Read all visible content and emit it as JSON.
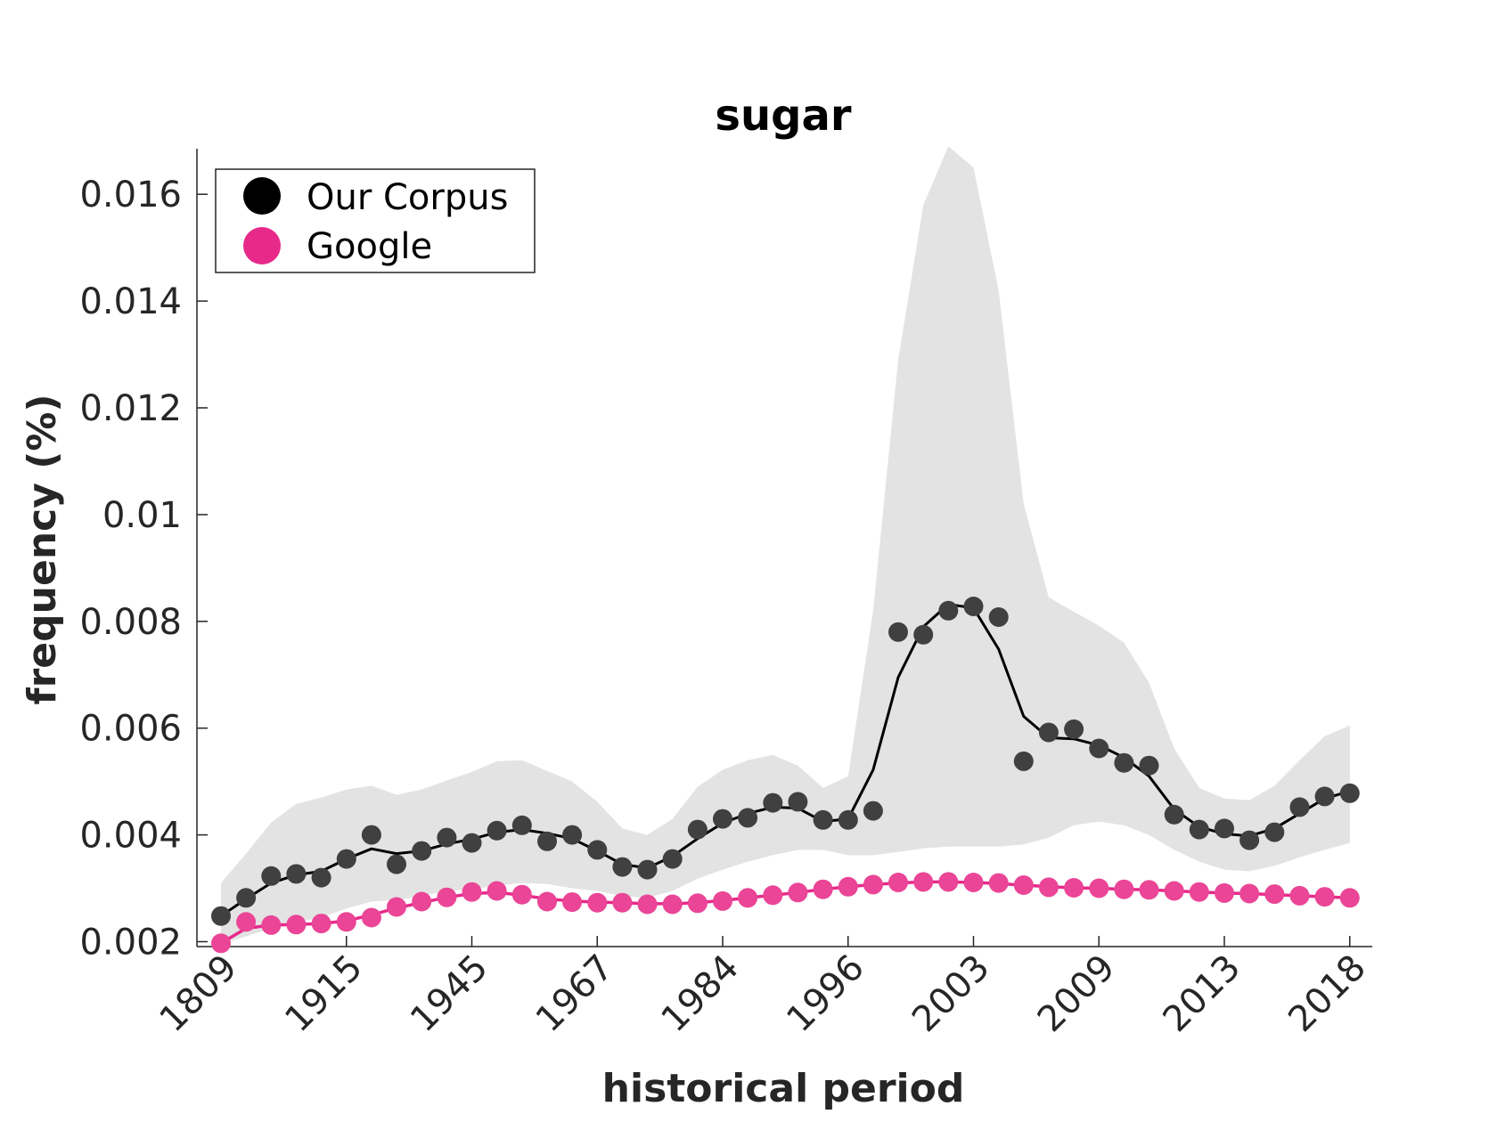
{
  "chart_data": {
    "type": "line",
    "title": "sugar",
    "xlabel": "historical period",
    "ylabel": "frequency (%)",
    "ylim": [
      0.00195,
      0.0169
    ],
    "yticks": [
      0.002,
      0.004,
      0.006,
      0.008,
      0.01,
      0.012,
      0.014,
      0.016
    ],
    "ytick_labels": [
      "0.002",
      "0.004",
      "0.006",
      "0.008",
      "0.01",
      "0.012",
      "0.014",
      "0.016"
    ],
    "xtick_labels": [
      "1809",
      "1915",
      "1945",
      "1967",
      "1984",
      "1996",
      "2003",
      "2009",
      "2013",
      "2018"
    ],
    "xtick_positions": [
      0,
      5,
      10,
      15,
      20,
      25,
      30,
      35,
      40,
      45
    ],
    "x": [
      0,
      1,
      2,
      3,
      4,
      5,
      6,
      7,
      8,
      9,
      10,
      11,
      12,
      13,
      14,
      15,
      16,
      17,
      18,
      19,
      20,
      21,
      22,
      23,
      24,
      25,
      26,
      27,
      28,
      29,
      30,
      31,
      32,
      33,
      34,
      35,
      36,
      37,
      38,
      39,
      40,
      41,
      42,
      43,
      44,
      45
    ],
    "grid": false,
    "legend_position": "top-left",
    "series": [
      {
        "name": "Our Corpus",
        "color": "#000000",
        "marker_color": "#404040",
        "points": [
          0.00248,
          0.00282,
          0.00323,
          0.00327,
          0.0032,
          0.00355,
          0.004,
          0.00345,
          0.0037,
          0.00395,
          0.00385,
          0.00408,
          0.00418,
          0.00388,
          0.004,
          0.00372,
          0.0034,
          0.00335,
          0.00355,
          0.0041,
          0.0043,
          0.00432,
          0.0046,
          0.00462,
          0.00428,
          0.00428,
          0.00445,
          0.0078,
          0.00775,
          0.0082,
          0.00828,
          0.00808,
          0.00538,
          0.00592,
          0.00598,
          0.00562,
          0.00535,
          0.0053,
          0.00438,
          0.0041,
          0.00412,
          0.0039,
          0.00405,
          0.00452,
          0.00472,
          0.00478
        ],
        "smooth": [
          0.00248,
          0.0028,
          0.0031,
          0.00325,
          0.00332,
          0.00355,
          0.00374,
          0.00365,
          0.0037,
          0.00383,
          0.00392,
          0.00405,
          0.0041,
          0.00403,
          0.00393,
          0.0037,
          0.00345,
          0.00338,
          0.0036,
          0.00393,
          0.00422,
          0.0044,
          0.00452,
          0.0045,
          0.00425,
          0.0043,
          0.00522,
          0.00695,
          0.0079,
          0.00832,
          0.00825,
          0.00748,
          0.00622,
          0.00582,
          0.0058,
          0.00568,
          0.00545,
          0.0051,
          0.00448,
          0.00415,
          0.00402,
          0.00398,
          0.00412,
          0.0044,
          0.00468,
          0.00482
        ],
        "band_upper": [
          0.0031,
          0.00365,
          0.00423,
          0.00458,
          0.0047,
          0.00485,
          0.00492,
          0.00475,
          0.00485,
          0.00502,
          0.00518,
          0.00538,
          0.0054,
          0.0052,
          0.005,
          0.00462,
          0.00412,
          0.004,
          0.0043,
          0.0049,
          0.00522,
          0.0054,
          0.0055,
          0.0053,
          0.00488,
          0.0051,
          0.0082,
          0.0129,
          0.0158,
          0.0169,
          0.0165,
          0.0142,
          0.0102,
          0.00845,
          0.00818,
          0.00792,
          0.0076,
          0.00685,
          0.00562,
          0.00488,
          0.00468,
          0.00465,
          0.00492,
          0.0054,
          0.00585,
          0.00605
        ],
        "band_lower": [
          0.00195,
          0.0021,
          0.00225,
          0.00237,
          0.00245,
          0.00262,
          0.00275,
          0.00278,
          0.00285,
          0.00295,
          0.00298,
          0.00305,
          0.0031,
          0.00308,
          0.003,
          0.00295,
          0.00285,
          0.00282,
          0.00295,
          0.00318,
          0.00335,
          0.0035,
          0.00362,
          0.00372,
          0.00372,
          0.00362,
          0.00362,
          0.00368,
          0.00375,
          0.00378,
          0.00378,
          0.00378,
          0.00382,
          0.00395,
          0.00418,
          0.00425,
          0.00418,
          0.004,
          0.00372,
          0.0035,
          0.00335,
          0.00332,
          0.00342,
          0.00358,
          0.00372,
          0.00385
        ]
      },
      {
        "name": "Google",
        "color": "#e7298a",
        "marker_color": "#ea4596",
        "points": [
          0.00197,
          0.00237,
          0.00231,
          0.00232,
          0.00234,
          0.00237,
          0.00245,
          0.00265,
          0.00275,
          0.00283,
          0.00293,
          0.00295,
          0.00288,
          0.00275,
          0.00274,
          0.00273,
          0.00273,
          0.0027,
          0.0027,
          0.00272,
          0.00276,
          0.00282,
          0.00287,
          0.00292,
          0.00298,
          0.00303,
          0.00307,
          0.00311,
          0.00312,
          0.00312,
          0.00311,
          0.0031,
          0.00306,
          0.00302,
          0.00301,
          0.003,
          0.00298,
          0.00297,
          0.00295,
          0.00293,
          0.00291,
          0.0029,
          0.00289,
          0.00286,
          0.00284,
          0.00282
        ],
        "smooth": [
          0.00197,
          0.00225,
          0.00231,
          0.00232,
          0.00234,
          0.00239,
          0.0025,
          0.00263,
          0.00273,
          0.00283,
          0.0029,
          0.00292,
          0.00287,
          0.0028,
          0.00276,
          0.00274,
          0.00273,
          0.00271,
          0.00271,
          0.00273,
          0.00277,
          0.00282,
          0.00287,
          0.00292,
          0.00298,
          0.00303,
          0.00307,
          0.0031,
          0.00312,
          0.00312,
          0.00311,
          0.00309,
          0.00306,
          0.00303,
          0.00301,
          0.003,
          0.00298,
          0.00297,
          0.00295,
          0.00293,
          0.00291,
          0.0029,
          0.00288,
          0.00286,
          0.00284,
          0.00282
        ]
      }
    ]
  }
}
